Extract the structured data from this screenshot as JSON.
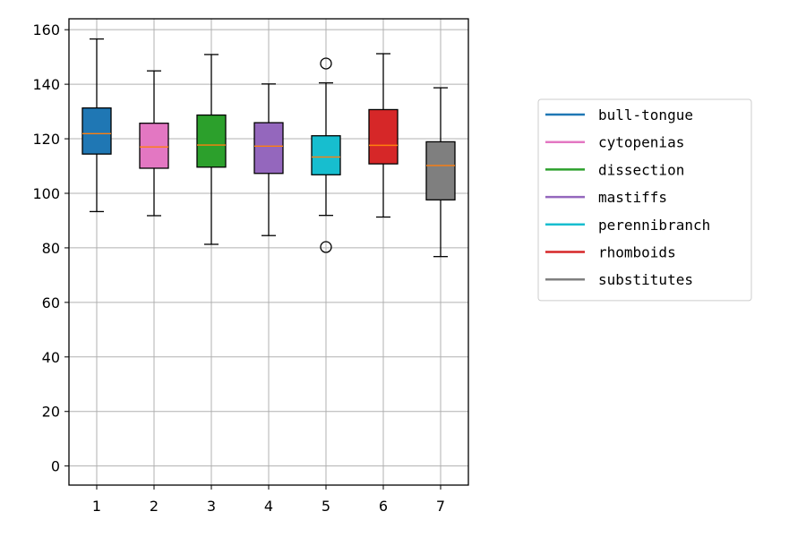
{
  "chart_data": {
    "type": "box",
    "title": "",
    "xlabel": "",
    "ylabel": "",
    "categories": [
      "1",
      "2",
      "3",
      "4",
      "5",
      "6",
      "7"
    ],
    "ylim": [
      -7,
      164
    ],
    "yticks": [
      0,
      20,
      40,
      60,
      80,
      100,
      120,
      140,
      160
    ],
    "grid": true,
    "legend_position": "right",
    "median_color": "#ff7f0e",
    "series": [
      {
        "name": "bull-tongue",
        "color": "#1f77b4",
        "whisker_low": 93.3,
        "q1": 114.4,
        "median": 121.9,
        "q3": 131.3,
        "whisker_high": 156.6,
        "outliers": []
      },
      {
        "name": "cytopenias",
        "color": "#e377c2",
        "whisker_low": 91.8,
        "q1": 109.2,
        "median": 117.0,
        "q3": 125.7,
        "whisker_high": 144.9,
        "outliers": []
      },
      {
        "name": "dissection",
        "color": "#2ca02c",
        "whisker_low": 81.3,
        "q1": 109.6,
        "median": 117.7,
        "q3": 128.7,
        "whisker_high": 150.9,
        "outliers": []
      },
      {
        "name": "mastiffs",
        "color": "#9467bd",
        "whisker_low": 84.5,
        "q1": 107.3,
        "median": 117.3,
        "q3": 125.9,
        "whisker_high": 140.1,
        "outliers": []
      },
      {
        "name": "perennibranch",
        "color": "#17becf",
        "whisker_low": 91.9,
        "q1": 106.8,
        "median": 113.3,
        "q3": 121.1,
        "whisker_high": 140.5,
        "outliers": [
          147.6,
          80.3
        ]
      },
      {
        "name": "rhomboids",
        "color": "#d62728",
        "whisker_low": 91.3,
        "q1": 110.8,
        "median": 117.6,
        "q3": 130.7,
        "whisker_high": 151.2,
        "outliers": []
      },
      {
        "name": "substitutes",
        "color": "#7f7f7f",
        "whisker_low": 76.8,
        "q1": 97.6,
        "median": 110.2,
        "q3": 118.9,
        "whisker_high": 138.7,
        "outliers": []
      }
    ]
  }
}
